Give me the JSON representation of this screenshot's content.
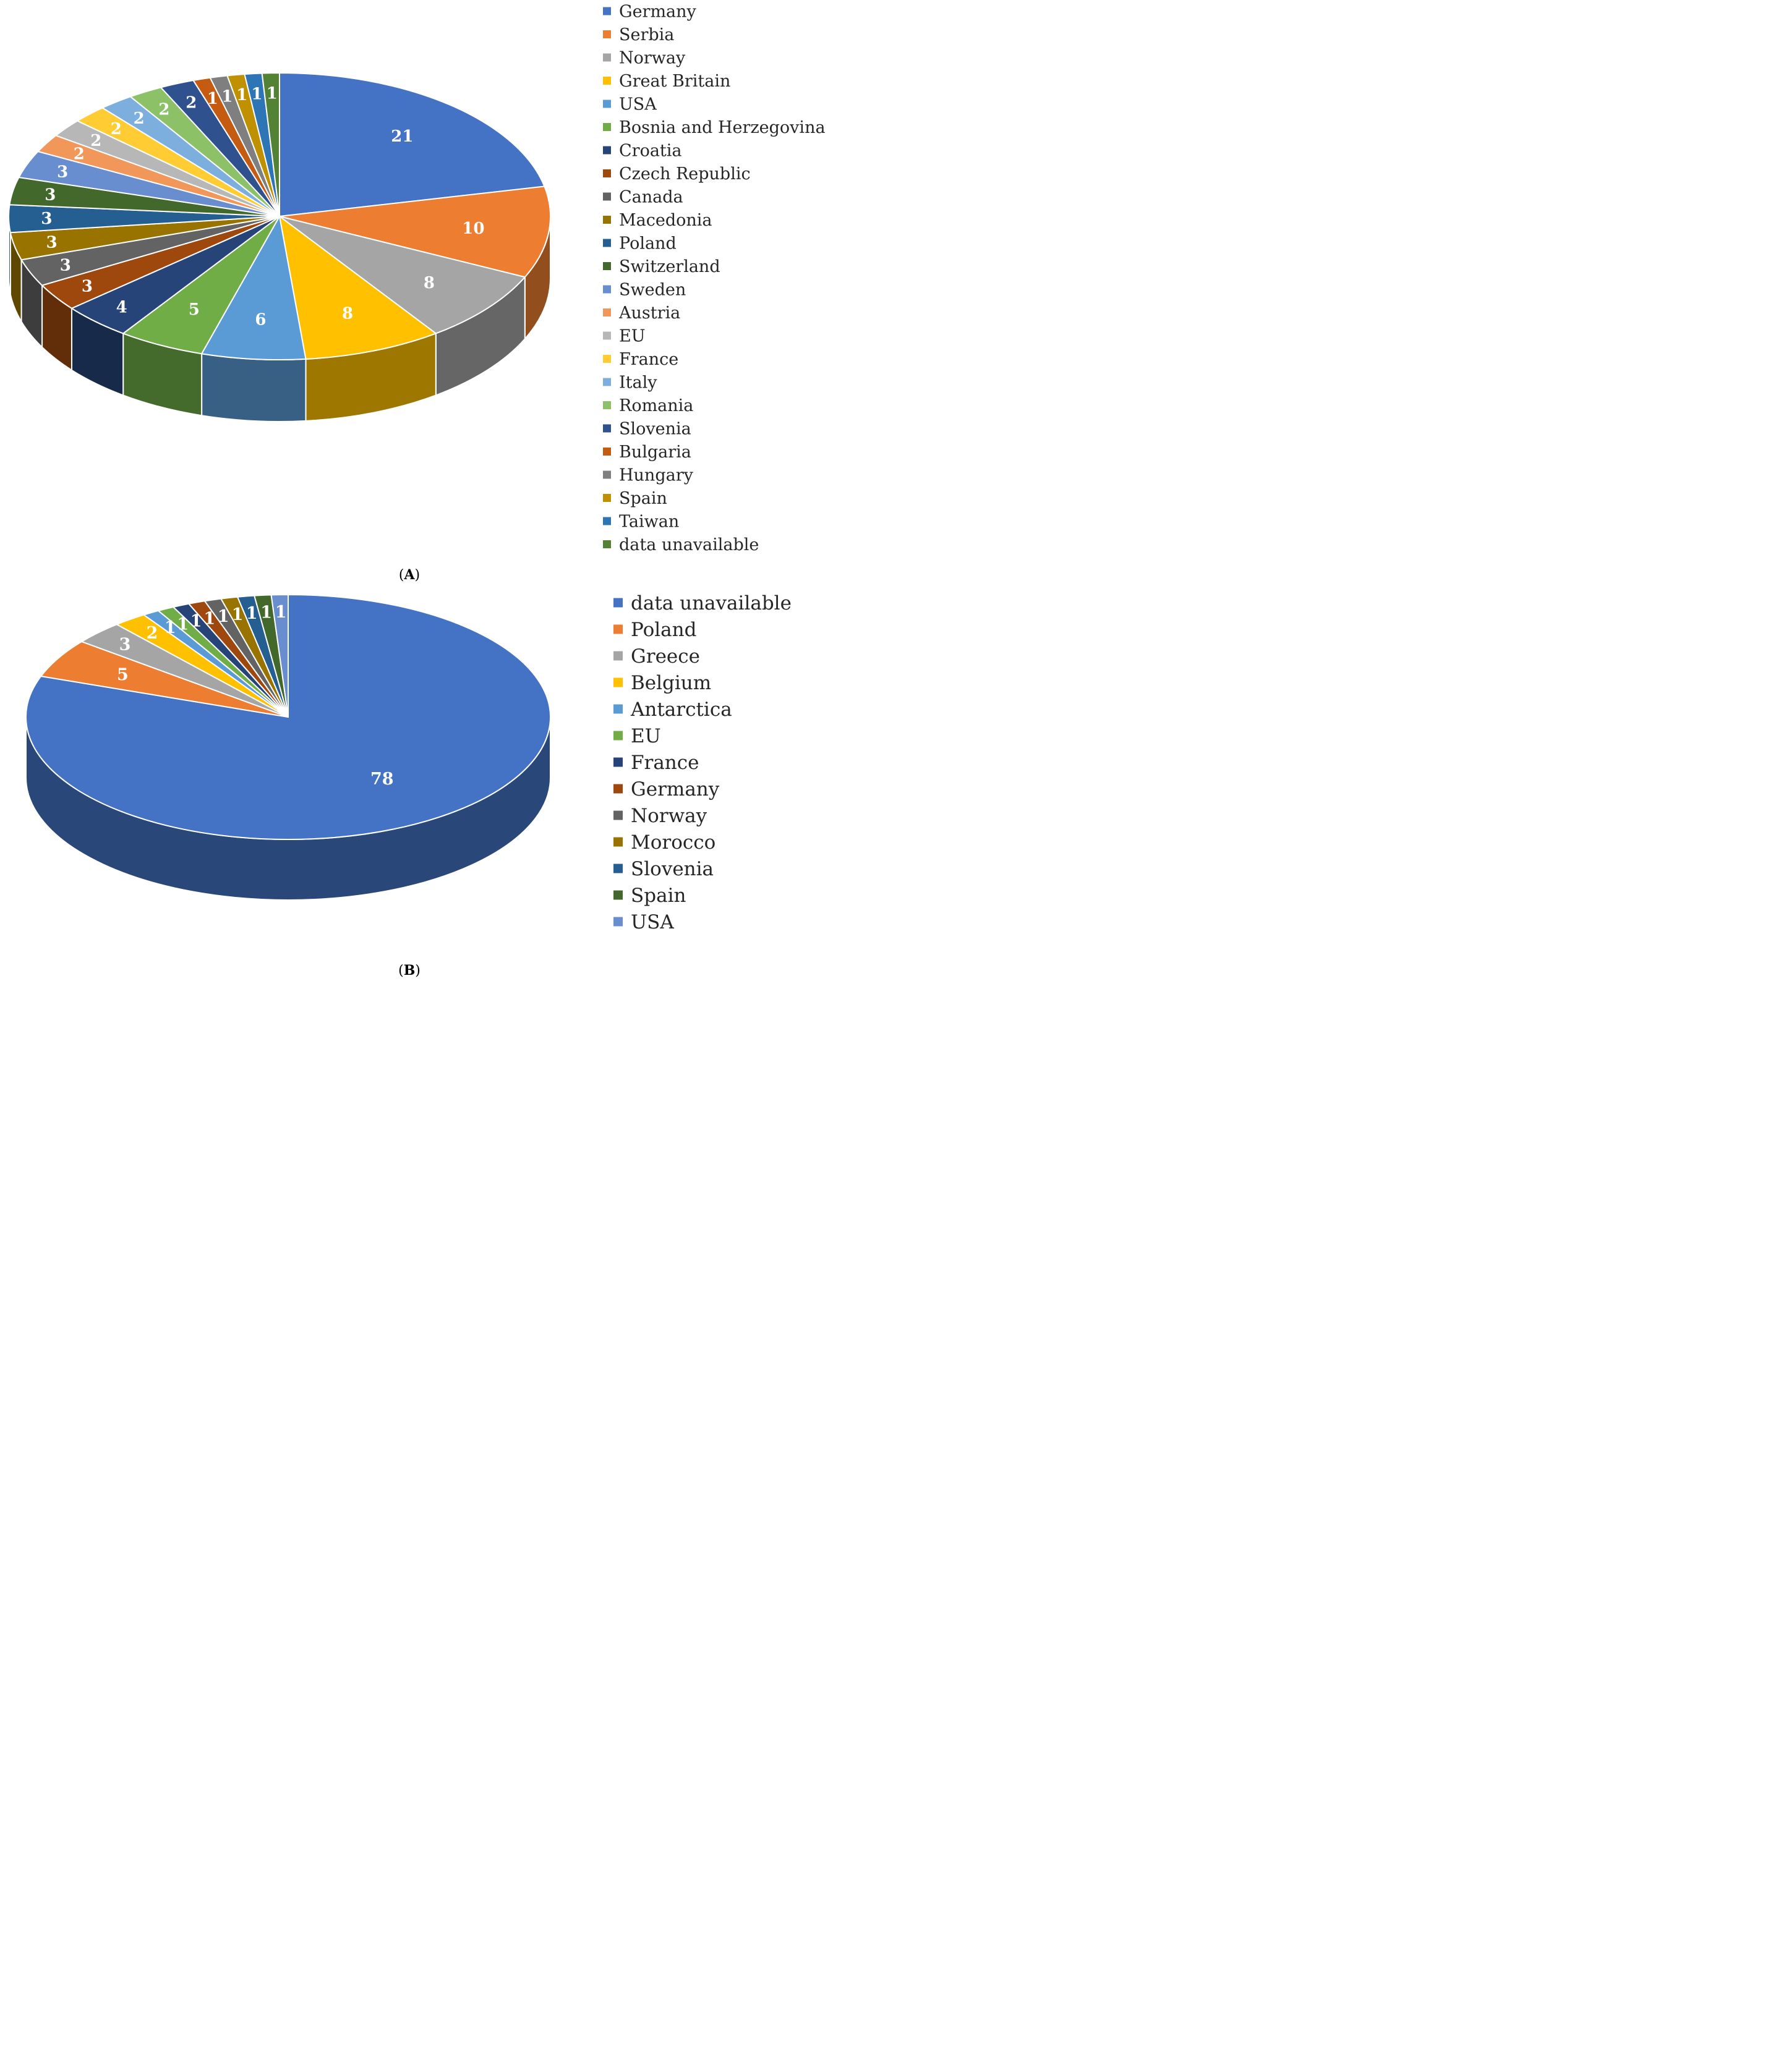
{
  "chart_data": [
    {
      "type": "pie",
      "panel": "A",
      "caption_letter": "A",
      "slices": [
        {
          "label": "Germany",
          "value": 21,
          "color": "#4472C4"
        },
        {
          "label": "Serbia",
          "value": 10,
          "color": "#ED7D31"
        },
        {
          "label": "Norway",
          "value": 8,
          "color": "#A5A5A5"
        },
        {
          "label": "Great Britain",
          "value": 8,
          "color": "#FFC000"
        },
        {
          "label": "USA",
          "value": 6,
          "color": "#5B9BD5"
        },
        {
          "label": "Bosnia and Herzegovina",
          "value": 5,
          "color": "#70AD47"
        },
        {
          "label": "Croatia",
          "value": 4,
          "color": "#264478"
        },
        {
          "label": "Czech Republic",
          "value": 3,
          "color": "#9E480E"
        },
        {
          "label": "Canada",
          "value": 3,
          "color": "#636363"
        },
        {
          "label": "Macedonia",
          "value": 3,
          "color": "#997300"
        },
        {
          "label": "Poland",
          "value": 3,
          "color": "#255E91"
        },
        {
          "label": "Switzerland",
          "value": 3,
          "color": "#43682B"
        },
        {
          "label": "Sweden",
          "value": 3,
          "color": "#698ED0"
        },
        {
          "label": "Austria",
          "value": 2,
          "color": "#F1975A"
        },
        {
          "label": "EU",
          "value": 2,
          "color": "#B7B7B7"
        },
        {
          "label": "France",
          "value": 2,
          "color": "#FFCD33"
        },
        {
          "label": "Italy",
          "value": 2,
          "color": "#7CAFDD"
        },
        {
          "label": "Romania",
          "value": 2,
          "color": "#8CC168"
        },
        {
          "label": "Slovenia",
          "value": 2,
          "color": "#2F528F"
        },
        {
          "label": "Bulgaria",
          "value": 1,
          "color": "#C55A11"
        },
        {
          "label": "Hungary",
          "value": 1,
          "color": "#7F7F7F"
        },
        {
          "label": "Spain",
          "value": 1,
          "color": "#BF9000"
        },
        {
          "label": "Taiwan",
          "value": 1,
          "color": "#2E75B6"
        },
        {
          "label": "data unavailable",
          "value": 1,
          "color": "#548235"
        }
      ]
    },
    {
      "type": "pie",
      "panel": "B",
      "caption_letter": "B",
      "slices": [
        {
          "label": "data unavailable",
          "value": 78,
          "color": "#4472C4"
        },
        {
          "label": "Poland",
          "value": 5,
          "color": "#ED7D31"
        },
        {
          "label": "Greece",
          "value": 3,
          "color": "#A5A5A5"
        },
        {
          "label": "Belgium",
          "value": 2,
          "color": "#FFC000"
        },
        {
          "label": "Antarctica",
          "value": 1,
          "color": "#5B9BD5"
        },
        {
          "label": "EU",
          "value": 1,
          "color": "#70AD47"
        },
        {
          "label": "France",
          "value": 1,
          "color": "#264478"
        },
        {
          "label": "Germany",
          "value": 1,
          "color": "#9E480E"
        },
        {
          "label": "Norway",
          "value": 1,
          "color": "#636363"
        },
        {
          "label": "Morocco",
          "value": 1,
          "color": "#997300"
        },
        {
          "label": "Slovenia",
          "value": 1,
          "color": "#255E91"
        },
        {
          "label": "Spain",
          "value": 1,
          "color": "#43682B"
        },
        {
          "label": "USA",
          "value": 1,
          "color": "#698ED0"
        }
      ]
    }
  ]
}
